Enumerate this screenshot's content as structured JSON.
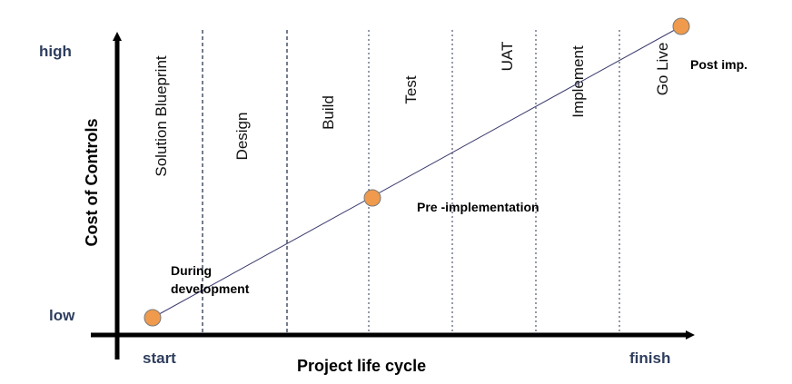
{
  "y_axis": {
    "title": "Cost of Controls",
    "high_label": "high",
    "low_label": "low"
  },
  "x_axis": {
    "title": "Project life cycle",
    "start_label": "start",
    "finish_label": "finish"
  },
  "phases": [
    "Solution  Blueprint",
    "Design",
    "Build",
    "Test",
    "UAT",
    "Implement",
    "Go Live"
  ],
  "annotations": {
    "during_line1": "During",
    "during_line2": "development",
    "pre": "Pre -implementation",
    "post": "Post  imp."
  },
  "colors": {
    "axis": "#000000",
    "axis_end_labels": "#2f3e5e",
    "divider": "#2b3550",
    "trend_line": "#3a3a6e",
    "point_fill": "#ef9a4c",
    "point_stroke": "#7a7a7a"
  }
}
